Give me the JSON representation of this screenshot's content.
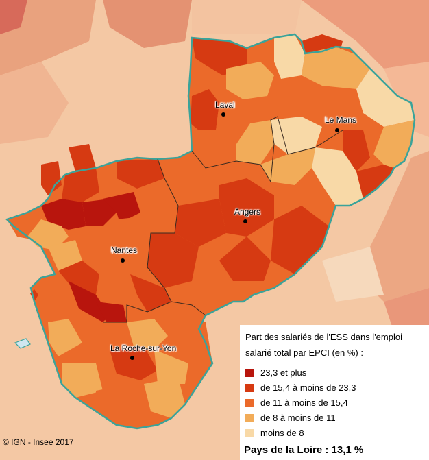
{
  "map": {
    "cities": [
      {
        "name": "Laval"
      },
      {
        "name": "Le Mans"
      },
      {
        "name": "Angers"
      },
      {
        "name": "Nantes"
      },
      {
        "name": "La Roche-sur-Yon"
      }
    ]
  },
  "legend": {
    "title": "Part des salariés de l'ESS dans l'emploi salarié total par EPCI (en %) :",
    "classes": [
      {
        "label": "23,3 et plus",
        "color": "#b8150d"
      },
      {
        "label": "de 15,4 à moins de 23,3",
        "color": "#d63a12"
      },
      {
        "label": "de 11 à moins de 15,4",
        "color": "#eb6a2a"
      },
      {
        "label": "de 8 à moins de 11",
        "color": "#f2ac59"
      },
      {
        "label": "moins de 8",
        "color": "#f8d9a7"
      }
    ],
    "regional_total": "Pays de la Loire : 13,1 %"
  },
  "copyright": "© IGN - Insee 2017",
  "colors": {
    "sea": "#cfe7f0",
    "region_border": "#3aa39a",
    "outside_light": "#f4c8a4"
  }
}
